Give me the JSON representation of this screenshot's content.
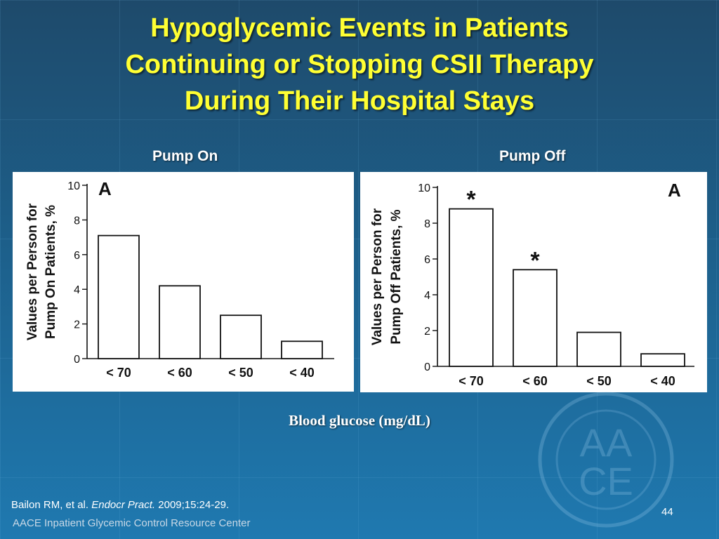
{
  "slide": {
    "title_lines": [
      "Hypoglycemic Events in Patients",
      "Continuing or Stopping CSII Therapy",
      "During Their Hospital Stays"
    ],
    "xlabel": "Blood glucose (mg/dL)",
    "citation": {
      "authors": "Bailon RM, et al.",
      "journal": "Endocr Pract.",
      "details": "2009;15:24-29."
    },
    "footer": "AACE Inpatient Glycemic Control Resource Center",
    "page_number": "44",
    "colors": {
      "title": "#ffff33",
      "background_top": "#1e4a6b",
      "background_bottom": "#1f79b0"
    }
  },
  "chart_data": [
    {
      "type": "bar",
      "panel_title": "Pump On",
      "panel_letter": "A",
      "categories": [
        "< 70",
        "< 60",
        "< 50",
        "< 40"
      ],
      "values": [
        7.1,
        4.2,
        2.5,
        1.0
      ],
      "significance": [
        "",
        "",
        "",
        ""
      ],
      "ylabel_lines": [
        "Values per Person for",
        "Pump On Patients, %"
      ],
      "ylim": [
        0,
        10
      ],
      "yticks": [
        0,
        2,
        4,
        6,
        8,
        10
      ]
    },
    {
      "type": "bar",
      "panel_title": "Pump Off",
      "panel_letter": "A",
      "categories": [
        "< 70",
        "< 60",
        "< 50",
        "< 40"
      ],
      "values": [
        8.8,
        5.4,
        1.9,
        0.7
      ],
      "significance": [
        "*",
        "*",
        "",
        ""
      ],
      "ylabel_lines": [
        "Values per Person for",
        "Pump Off Patients, %"
      ],
      "ylim": [
        0,
        10
      ],
      "yticks": [
        0,
        2,
        4,
        6,
        8,
        10
      ]
    }
  ]
}
